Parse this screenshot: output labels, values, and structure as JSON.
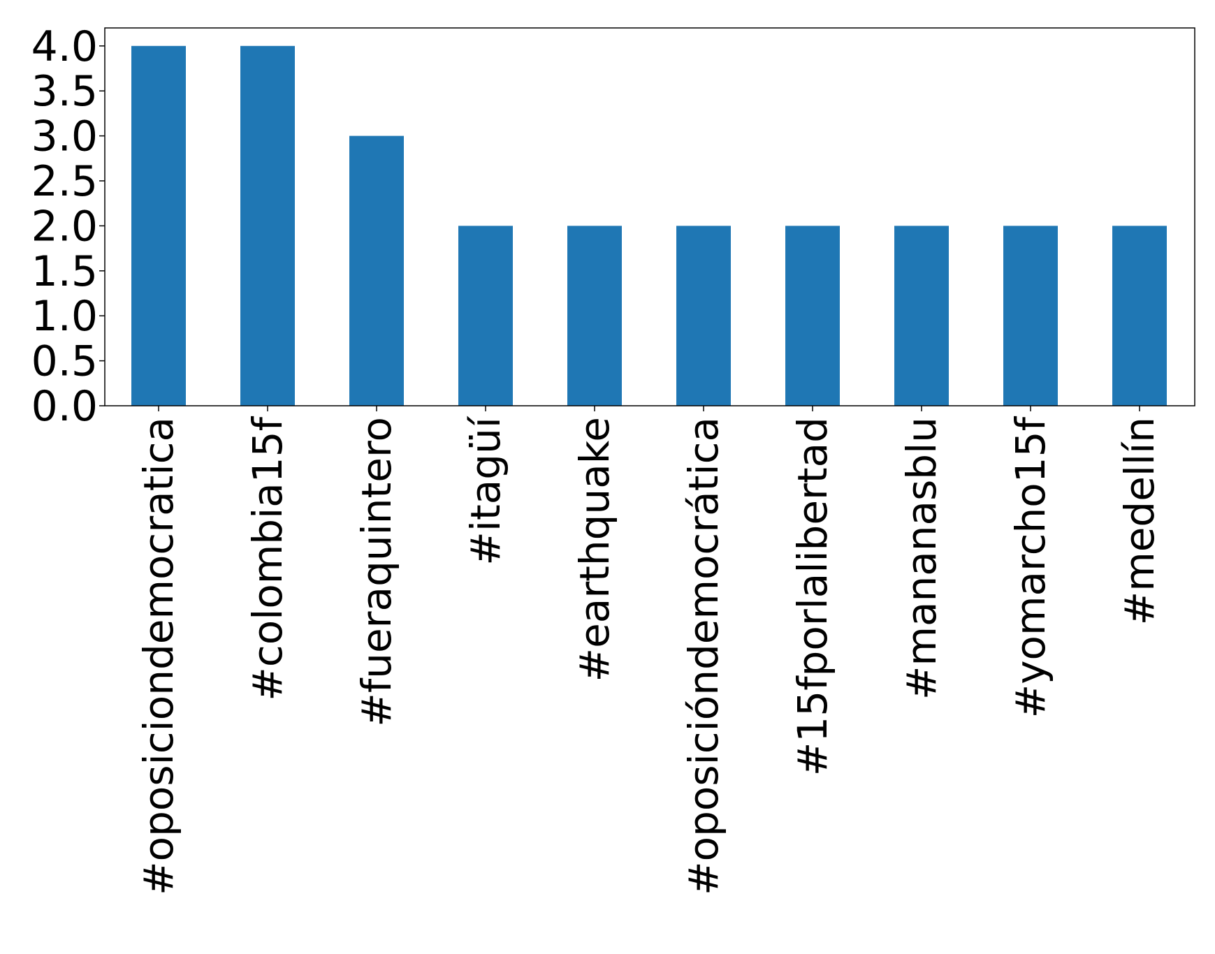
{
  "chart_data": {
    "type": "bar",
    "title": "",
    "xlabel": "",
    "ylabel": "",
    "categories": [
      "#oposiciondemocratica",
      "#colombia15f",
      "#fueraquintero",
      "#itagüí",
      "#earthquake",
      "#oposicióndemocrática",
      "#15fporlalibertad",
      "#mananasblu",
      "#yomarcho15f",
      "#medellín"
    ],
    "values": [
      4,
      4,
      3,
      2,
      2,
      2,
      2,
      2,
      2,
      2
    ],
    "ylim": [
      0,
      4.2
    ],
    "yticks": [
      0.0,
      0.5,
      1.0,
      1.5,
      2.0,
      2.5,
      3.0,
      3.5,
      4.0
    ],
    "ytick_labels": [
      "0.0",
      "0.5",
      "1.0",
      "1.5",
      "2.0",
      "2.5",
      "3.0",
      "3.5",
      "4.0"
    ],
    "bar_color": "#1f77b4",
    "grid": false,
    "legend": "none"
  }
}
